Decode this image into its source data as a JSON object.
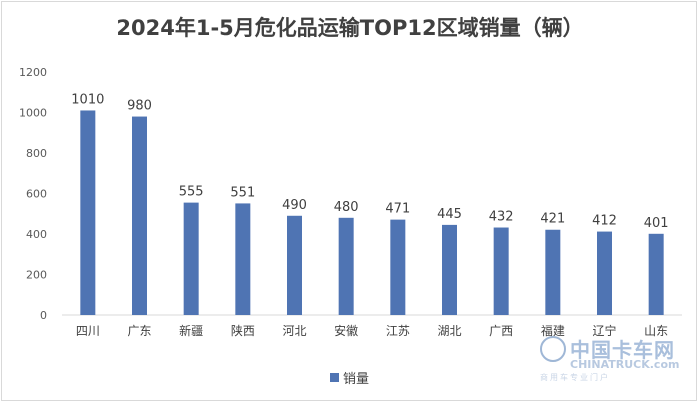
{
  "chart_data": {
    "type": "bar",
    "title": "2024年1-5月危化品运输TOP12区域销量（辆）",
    "categories": [
      "四川",
      "广东",
      "新疆",
      "陕西",
      "河北",
      "安徽",
      "江苏",
      "湖北",
      "广西",
      "福建",
      "辽宁",
      "山东"
    ],
    "series": [
      {
        "name": "销量",
        "values": [
          1010,
          980,
          555,
          551,
          490,
          480,
          471,
          445,
          432,
          421,
          412,
          401
        ]
      }
    ],
    "ylim": [
      0,
      1200
    ],
    "yticks": [
      0,
      200,
      400,
      600,
      800,
      1000,
      1200
    ],
    "ytick_labels": [
      "0",
      "200",
      "400",
      "600",
      "800",
      "1000",
      "1200"
    ],
    "grid": false,
    "legend": "bottom",
    "bar_color": "#4f74b3"
  },
  "watermark": {
    "brand_cn": "中国卡车网",
    "brand_en": "CHINATRUCK",
    "domain_suffix": ".com",
    "tagline": "商用车专业门户"
  }
}
